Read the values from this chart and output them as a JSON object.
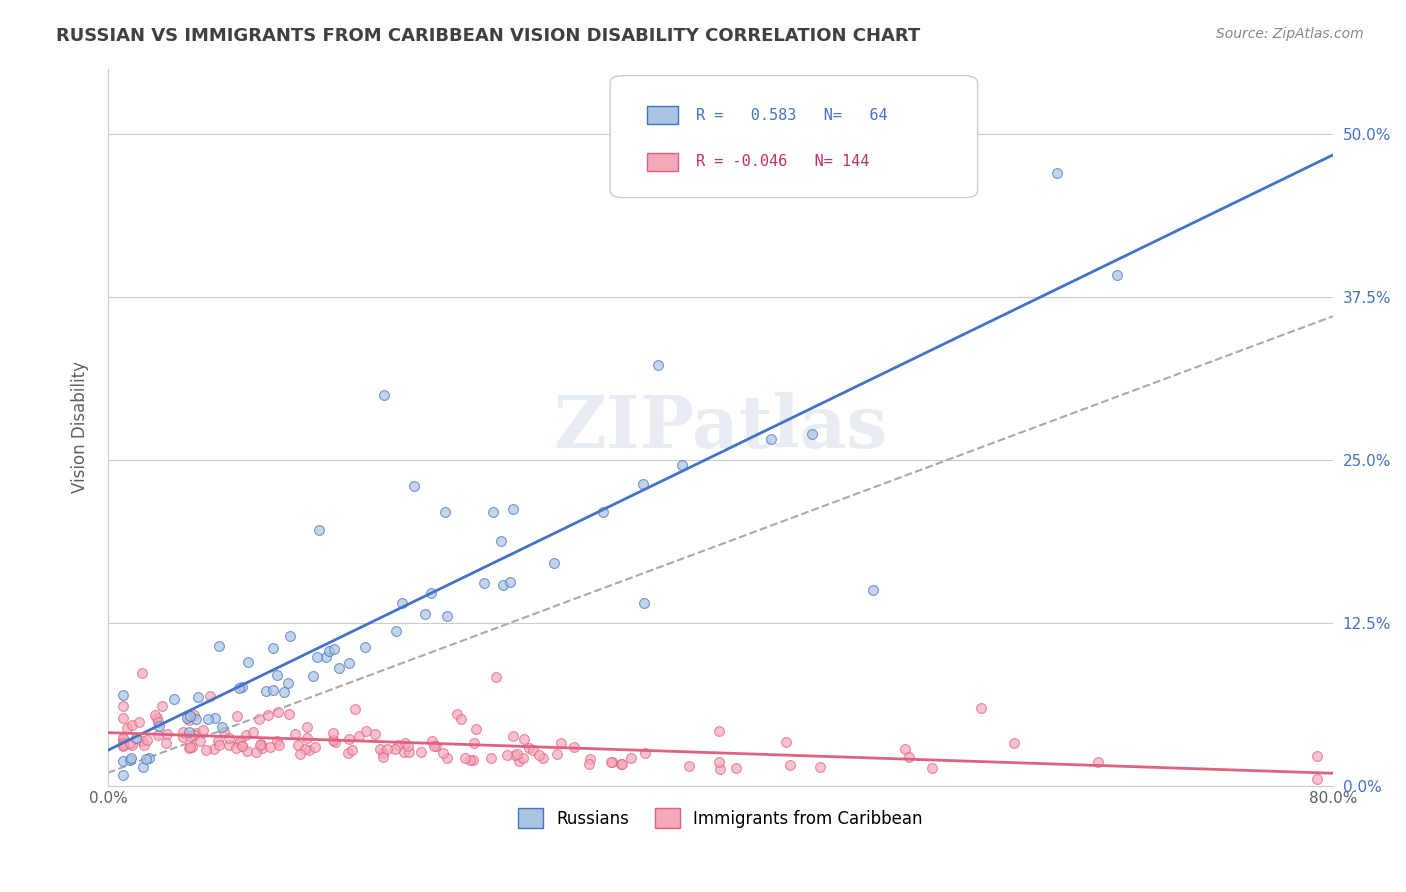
{
  "title": "RUSSIAN VS IMMIGRANTS FROM CARIBBEAN VISION DISABILITY CORRELATION CHART",
  "source": "Source: ZipAtlas.com",
  "xlabel": "",
  "ylabel": "Vision Disability",
  "xlim": [
    0.0,
    0.8
  ],
  "ylim": [
    0.0,
    0.55
  ],
  "yticks": [
    0.0,
    0.125,
    0.25,
    0.375,
    0.5
  ],
  "ytick_labels": [
    "0.0%",
    "12.5%",
    "25.0%",
    "37.5%",
    "50.0%"
  ],
  "xticks": [
    0.0,
    0.2,
    0.4,
    0.6,
    0.8
  ],
  "xtick_labels": [
    "0.0%",
    "",
    "",
    "",
    "80.0%"
  ],
  "legend_R1": "0.583",
  "legend_N1": "64",
  "legend_R2": "-0.046",
  "legend_N2": "144",
  "color_russian": "#a8c4e0",
  "color_caribbean": "#f4a8b8",
  "color_russian_line": "#4472c4",
  "color_caribbean_line": "#e06080",
  "color_dashed_line": "#aaaaaa",
  "watermark": "ZIPatlas",
  "background_color": "#ffffff",
  "grid_color": "#cccccc",
  "title_color": "#404040",
  "axis_label_color": "#606060",
  "tick_label_color_right": "#4472c4",
  "scatter_russian": {
    "x": [
      0.02,
      0.03,
      0.04,
      0.05,
      0.06,
      0.06,
      0.07,
      0.07,
      0.08,
      0.08,
      0.09,
      0.09,
      0.1,
      0.1,
      0.11,
      0.11,
      0.12,
      0.12,
      0.13,
      0.14,
      0.15,
      0.15,
      0.16,
      0.18,
      0.19,
      0.2,
      0.22,
      0.23,
      0.25,
      0.26,
      0.28,
      0.3,
      0.33,
      0.35,
      0.38,
      0.4,
      0.42,
      0.45,
      0.48,
      0.5,
      0.52,
      0.55,
      0.57,
      0.6,
      0.62,
      0.65,
      0.68,
      0.7,
      0.72,
      0.75,
      0.77,
      0.8
    ],
    "y": [
      0.02,
      0.02,
      0.03,
      0.02,
      0.02,
      0.03,
      0.02,
      0.02,
      0.03,
      0.02,
      0.02,
      0.03,
      0.02,
      0.02,
      0.02,
      0.03,
      0.02,
      0.02,
      0.22,
      0.08,
      0.21,
      0.19,
      0.02,
      0.02,
      0.02,
      0.02,
      0.17,
      0.09,
      0.1,
      0.11,
      0.02,
      0.02,
      0.02,
      0.14,
      0.13,
      0.02,
      0.02,
      0.02,
      0.02,
      0.15,
      0.02,
      0.02,
      0.02,
      0.47,
      0.02,
      0.02,
      0.02,
      0.02,
      0.02,
      0.02,
      0.02,
      0.02
    ]
  },
  "scatter_caribbean": {
    "x": [
      0.01,
      0.02,
      0.02,
      0.03,
      0.03,
      0.04,
      0.04,
      0.05,
      0.05,
      0.06,
      0.06,
      0.07,
      0.07,
      0.08,
      0.08,
      0.09,
      0.09,
      0.1,
      0.1,
      0.11,
      0.11,
      0.12,
      0.12,
      0.13,
      0.14,
      0.15,
      0.16,
      0.17,
      0.18,
      0.19,
      0.2,
      0.21,
      0.22,
      0.23,
      0.25,
      0.27,
      0.29,
      0.31,
      0.33,
      0.35,
      0.37,
      0.39,
      0.41,
      0.43,
      0.45,
      0.47,
      0.5,
      0.52,
      0.55,
      0.57,
      0.6,
      0.63,
      0.65,
      0.67,
      0.7,
      0.73,
      0.75,
      0.77,
      0.79
    ],
    "y": [
      0.02,
      0.02,
      0.03,
      0.02,
      0.02,
      0.02,
      0.03,
      0.02,
      0.02,
      0.02,
      0.03,
      0.02,
      0.02,
      0.02,
      0.03,
      0.02,
      0.02,
      0.02,
      0.03,
      0.02,
      0.02,
      0.02,
      0.02,
      0.02,
      0.02,
      0.02,
      0.02,
      0.02,
      0.02,
      0.02,
      0.02,
      0.02,
      0.02,
      0.02,
      0.02,
      0.02,
      0.02,
      0.02,
      0.02,
      0.02,
      0.02,
      0.02,
      0.02,
      0.02,
      0.02,
      0.02,
      0.02,
      0.02,
      0.02,
      0.02,
      0.02,
      0.02,
      0.02,
      0.02,
      0.02,
      0.02,
      0.06,
      0.02,
      0.02
    ]
  }
}
